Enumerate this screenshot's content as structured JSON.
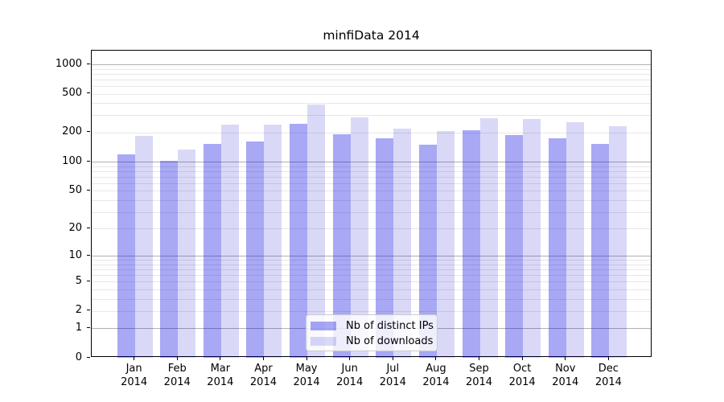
{
  "chart_data": {
    "type": "bar",
    "title": "minfiData 2014",
    "categories": [
      "Jan",
      "Feb",
      "Mar",
      "Apr",
      "May",
      "Jun",
      "Jul",
      "Aug",
      "Sep",
      "Oct",
      "Nov",
      "Dec"
    ],
    "x_year_label": "2014",
    "series": [
      {
        "name": "Nb of distinct IPs",
        "color": "rgba(0,0,225,0.34)",
        "values": [
          120,
          103,
          153,
          161,
          245,
          192,
          175,
          150,
          210,
          190,
          175,
          153
        ]
      },
      {
        "name": "Nb of downloads",
        "color": "rgba(0,0,200,0.15)",
        "values": [
          186,
          134,
          240,
          242,
          384,
          285,
          220,
          207,
          283,
          276,
          256,
          233
        ]
      }
    ],
    "y_axis": {
      "scale": "log10(value+1), zero shown at baseline",
      "tick_labels": [
        0,
        1,
        2,
        5,
        10,
        20,
        50,
        100,
        200,
        500,
        1000
      ],
      "major_gridlines": [
        1,
        10,
        100,
        1000
      ],
      "ylim": [
        0,
        1385
      ],
      "grid": true
    },
    "legend_position": "lower center",
    "colors": {
      "major_grid": "#b0b0b0",
      "minor_grid": "#e7e7e7",
      "spine": "#000000",
      "background": "#ffffff"
    }
  }
}
